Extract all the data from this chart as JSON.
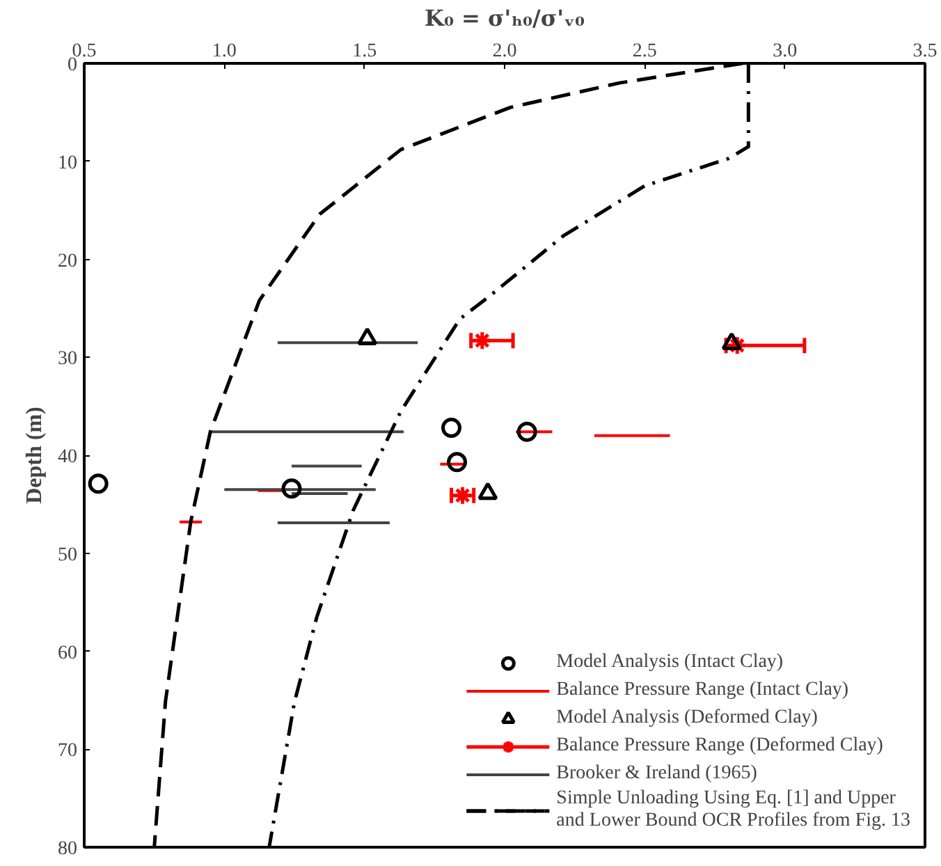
{
  "chart_data": {
    "type": "scatter",
    "xlabel": "K₀ = σ'ₕ₀/σ'ᵥ₀",
    "ylabel": "Depth (m)",
    "xlim": [
      0.5,
      3.5
    ],
    "ylim": [
      80,
      0
    ],
    "xticks": [
      {
        "value": 0.5,
        "label": "0.5"
      },
      {
        "value": 1,
        "label": "1.0"
      },
      {
        "value": 1.5,
        "label": "1.5"
      },
      {
        "value": 2,
        "label": "2.0"
      },
      {
        "value": 2.5,
        "label": "2.5"
      },
      {
        "value": 3,
        "label": "3.0"
      },
      {
        "value": 3.5,
        "label": "3.5"
      }
    ],
    "yticks": [
      0,
      10,
      20,
      30,
      40,
      50,
      60,
      70,
      80
    ],
    "grid": false,
    "legend": "bottom right",
    "series": [
      {
        "name": "Model Analysis (Intact Clay)",
        "color": "#000000",
        "marker": "circle",
        "x": [
          0.55,
          1.24,
          1.81,
          1.83,
          2.08
        ],
        "values": [
          42.9,
          43.4,
          37.2,
          40.7,
          37.6
        ]
      },
      {
        "name": "Balance Pressure Range (Intact Clay)",
        "type": "line",
        "line_style": "solid",
        "color": "#ff0000",
        "x": [
          0.84,
          0.92,
          null,
          1.12,
          1.22,
          null,
          1.77,
          1.86,
          null,
          2.04,
          2.17,
          null,
          2.32,
          2.59
        ],
        "values": [
          46.8,
          46.8,
          null,
          43.6,
          43.6,
          null,
          40.9,
          40.9,
          null,
          37.6,
          37.6,
          null,
          38.0,
          38.0
        ]
      },
      {
        "name": "Model Analysis (Deformed Clay)",
        "color": "#000000",
        "marker": "triangle",
        "x": [
          1.51,
          2.81,
          1.94
        ],
        "values": [
          28.1,
          28.6,
          43.9
        ]
      },
      {
        "name": "Balance Pressure Range (Deformed Clay)",
        "color": "#ff0000",
        "marker": "cross",
        "x": [
          1.92,
          2.83,
          1.85
        ],
        "values": [
          28.3,
          28.8,
          44.1
        ],
        "xerrors": [
          [
            1.88,
            2.03
          ],
          [
            2.79,
            3.07
          ],
          [
            1.81,
            1.89
          ]
        ]
      },
      {
        "name": "Brooker & Ireland (1965)",
        "type": "line",
        "line_style": "solid",
        "color": "#444444",
        "x": [
          1.19,
          1.69,
          null,
          0.95,
          1.64,
          null,
          1.24,
          1.49,
          null,
          1.0,
          1.54,
          null,
          1.24,
          1.44,
          null,
          1.19,
          1.59
        ],
        "values": [
          28.5,
          28.5,
          null,
          37.6,
          37.6,
          null,
          41.1,
          41.1,
          null,
          43.5,
          43.5,
          null,
          43.9,
          43.9,
          null,
          46.9,
          46.9
        ]
      },
      {
        "name": "Simple Unloading Using Eq. [1] and Upper and Lower Bound OCR Profiles from Fig. 13",
        "type": "line",
        "line_style": "dashed",
        "color": "#000000",
        "x": [
          2.85,
          2.41,
          2.02,
          1.63,
          1.34,
          1.125,
          0.95,
          0.88,
          0.79,
          0.75
        ],
        "values": [
          0,
          2.0,
          4.5,
          8.8,
          15.4,
          24.2,
          37.6,
          46.8,
          65.1,
          80
        ]
      },
      {
        "type": "line",
        "line_style": "dashdot",
        "color": "#000000",
        "x": [
          2.87,
          2.87,
          2.8,
          2.5,
          2.21,
          1.94,
          1.84,
          1.63,
          1.46,
          1.33,
          1.25,
          1.16
        ],
        "values": [
          0,
          8.5,
          9.7,
          12.5,
          17.6,
          23.9,
          26.1,
          35.5,
          45.6,
          56.5,
          65.2,
          80
        ]
      }
    ]
  }
}
